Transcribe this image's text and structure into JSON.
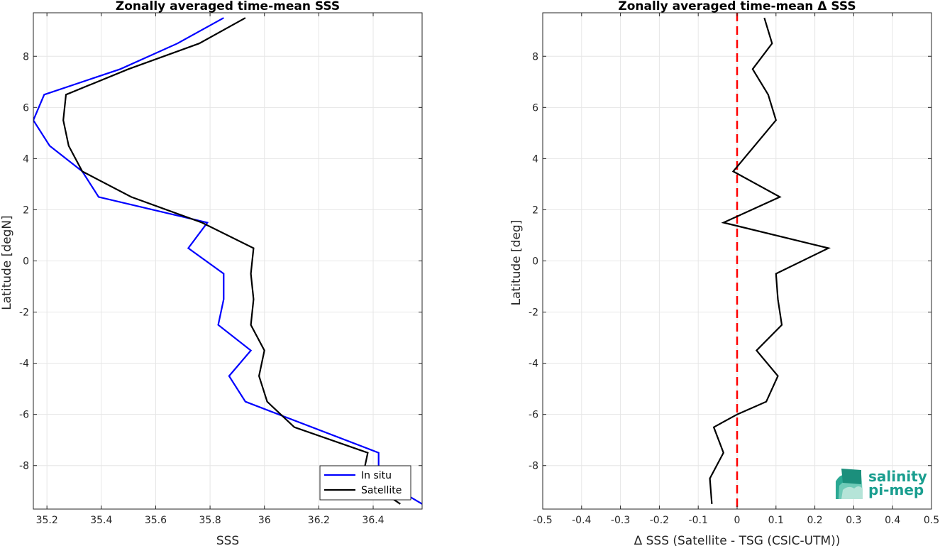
{
  "chart_data": [
    {
      "type": "line",
      "title": "Zonally averaged time-mean SSS",
      "xlabel": "SSS",
      "ylabel": "Latitude [degN]",
      "xlim": [
        35.15,
        36.58
      ],
      "ylim": [
        -9.7,
        9.7
      ],
      "xticks": [
        35.2,
        35.4,
        35.6,
        35.8,
        36,
        36.2,
        36.4
      ],
      "xtick_labels": [
        "35.2",
        "35.4",
        "35.6",
        "35.8",
        "36",
        "36.2",
        "36.4"
      ],
      "yticks": [
        -8,
        -6,
        -4,
        -2,
        0,
        2,
        4,
        6,
        8
      ],
      "ytick_labels": [
        "-8",
        "-6",
        "-4",
        "-2",
        "0",
        "2",
        "4",
        "6",
        "8"
      ],
      "grid": true,
      "legend_position": "bottom-right",
      "series": [
        {
          "name": "In situ",
          "color": "#0000ff",
          "x": [
            35.85,
            35.68,
            35.47,
            35.19,
            35.15,
            35.21,
            35.33,
            35.39,
            35.79,
            35.72,
            35.85,
            35.85,
            35.83,
            35.95,
            35.87,
            35.93,
            36.42,
            36.42,
            36.58
          ],
          "y": [
            9.5,
            8.5,
            7.5,
            6.5,
            5.5,
            4.5,
            3.5,
            2.5,
            1.5,
            0.5,
            -0.5,
            -1.5,
            -2.5,
            -3.5,
            -4.5,
            -5.5,
            -7.5,
            -8.5,
            -9.5
          ]
        },
        {
          "name": "Satellite",
          "color": "#000000",
          "x": [
            35.93,
            35.76,
            35.5,
            35.27,
            35.26,
            35.28,
            35.33,
            35.51,
            35.77,
            35.96,
            35.95,
            35.96,
            35.95,
            36.0,
            35.98,
            36.01,
            36.11,
            36.38,
            36.36,
            36.5
          ],
          "y": [
            9.5,
            8.5,
            7.5,
            6.5,
            5.5,
            4.5,
            3.5,
            2.5,
            1.5,
            0.5,
            -0.5,
            -1.5,
            -2.5,
            -3.5,
            -4.5,
            -5.5,
            -6.5,
            -7.5,
            -8.5,
            -9.5
          ]
        }
      ]
    },
    {
      "type": "line",
      "title": "Zonally averaged time-mean Δ SSS",
      "xlabel": "Δ SSS (Satellite - TSG (CSIC-UTM))",
      "ylabel": "Latitude [deg]",
      "xlim": [
        -0.5,
        0.5
      ],
      "ylim": [
        -9.7,
        9.7
      ],
      "xticks": [
        -0.5,
        -0.4,
        -0.3,
        -0.2,
        -0.1,
        0,
        0.1,
        0.2,
        0.3,
        0.4,
        0.5
      ],
      "xtick_labels": [
        "-0.5",
        "-0.4",
        "-0.3",
        "-0.2",
        "-0.1",
        "0",
        "0.1",
        "0.2",
        "0.3",
        "0.4",
        "0.5"
      ],
      "yticks": [
        -8,
        -6,
        -4,
        -2,
        0,
        2,
        4,
        6,
        8
      ],
      "ytick_labels": [
        "-8",
        "-6",
        "-4",
        "-2",
        "0",
        "2",
        "4",
        "6",
        "8"
      ],
      "grid": true,
      "series": [
        {
          "color": "#000000",
          "x": [
            0.07,
            0.09,
            0.04,
            0.08,
            0.1,
            -0.01,
            0.11,
            -0.035,
            0.235,
            0.1,
            0.105,
            0.115,
            0.05,
            0.105,
            0.075,
            0.0,
            -0.06,
            -0.035,
            -0.07,
            -0.065
          ],
          "y": [
            9.5,
            8.5,
            7.5,
            6.5,
            5.5,
            3.5,
            2.5,
            1.5,
            0.5,
            -0.5,
            -1.5,
            -2.5,
            -3.5,
            -4.5,
            -5.5,
            -6.0,
            -6.5,
            -7.5,
            -8.5,
            -9.5
          ]
        }
      ],
      "reference_line": {
        "x": 0,
        "color": "#ff0000",
        "style": "dashed"
      }
    }
  ],
  "logo": {
    "line1": "salinity",
    "line2": "pi-mep",
    "color": "#1a9e8f"
  }
}
